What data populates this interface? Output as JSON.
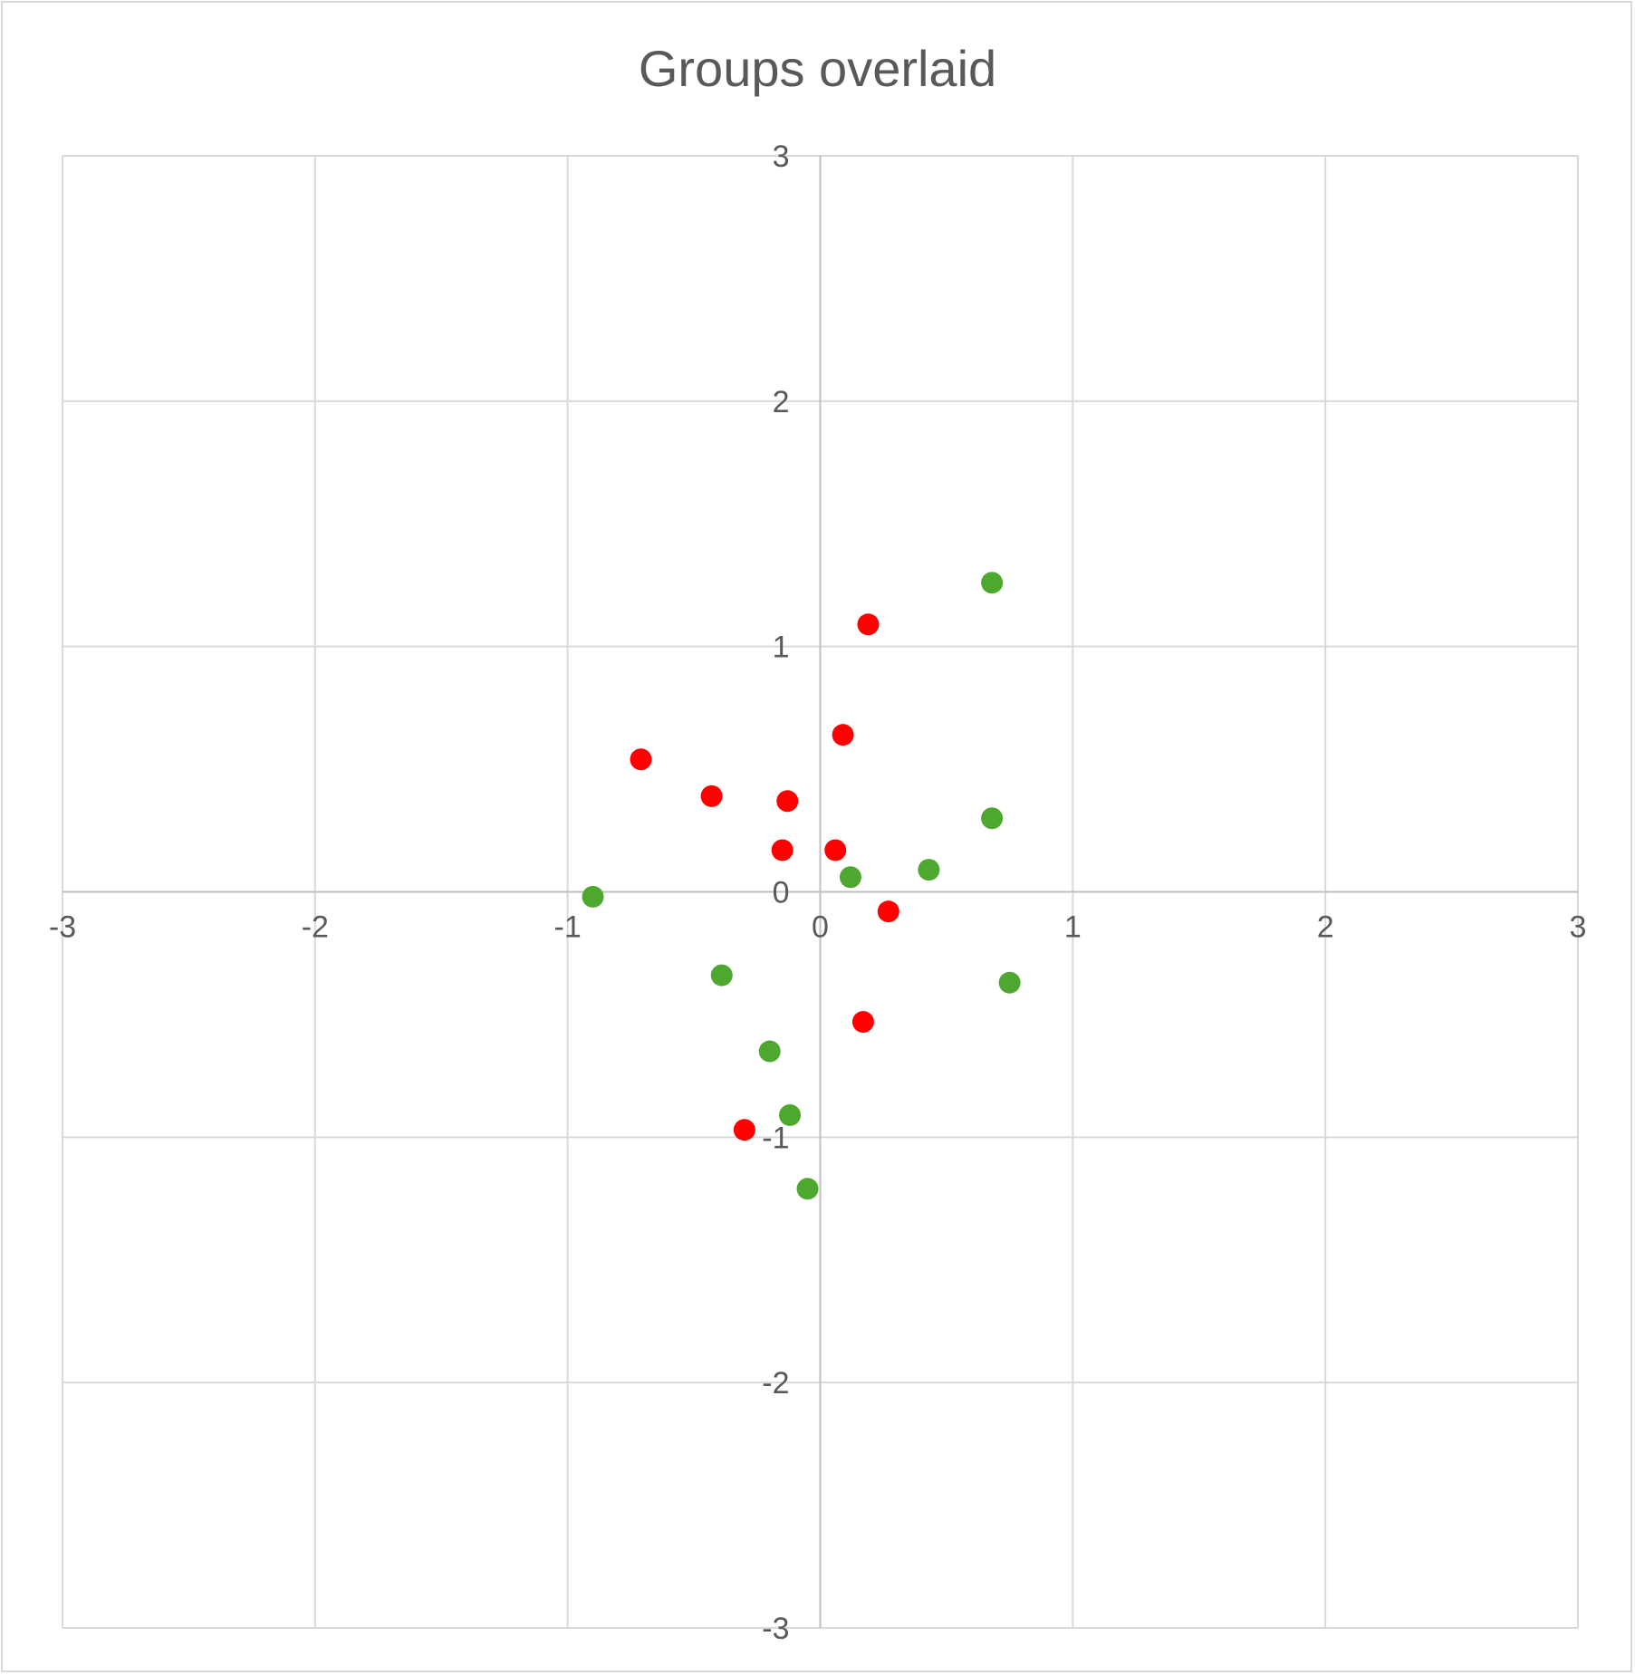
{
  "chart_data": {
    "type": "scatter",
    "title": "Groups overlaid",
    "xlabel": "",
    "ylabel": "",
    "xlim": [
      -3,
      3
    ],
    "ylim": [
      -3,
      3
    ],
    "x_ticks": [
      -3,
      -2,
      -1,
      0,
      1,
      2,
      3
    ],
    "y_ticks": [
      -3,
      -2,
      -1,
      0,
      1,
      2,
      3
    ],
    "x_tick_labels": [
      "-3",
      "-2",
      "-1",
      "0",
      "1",
      "2",
      "3"
    ],
    "y_tick_labels": [
      "-3",
      "-2",
      "-1",
      "0",
      "1",
      "2",
      "3"
    ],
    "grid": true,
    "legend": "none",
    "series": [
      {
        "color": "#ff0000",
        "points": [
          {
            "x": 0.19,
            "y": 1.09
          },
          {
            "x": 0.09,
            "y": 0.64
          },
          {
            "x": -0.71,
            "y": 0.54
          },
          {
            "x": -0.43,
            "y": 0.39
          },
          {
            "x": -0.13,
            "y": 0.37
          },
          {
            "x": -0.15,
            "y": 0.17
          },
          {
            "x": 0.06,
            "y": 0.17
          },
          {
            "x": 0.27,
            "y": -0.08
          },
          {
            "x": 0.17,
            "y": -0.53
          },
          {
            "x": -0.3,
            "y": -0.97
          }
        ]
      },
      {
        "color": "#4ea72e",
        "points": [
          {
            "x": 0.68,
            "y": 1.26
          },
          {
            "x": 0.68,
            "y": 0.3
          },
          {
            "x": 0.43,
            "y": 0.09
          },
          {
            "x": 0.12,
            "y": 0.06
          },
          {
            "x": -0.9,
            "y": -0.02
          },
          {
            "x": 0.75,
            "y": -0.37
          },
          {
            "x": -0.39,
            "y": -0.34
          },
          {
            "x": -0.2,
            "y": -0.65
          },
          {
            "x": -0.12,
            "y": -0.91
          },
          {
            "x": -0.05,
            "y": -1.21
          }
        ]
      }
    ],
    "colors": {
      "grid": "#d9d9d9",
      "axis": "#bfbfbf",
      "text": "#595959"
    }
  }
}
